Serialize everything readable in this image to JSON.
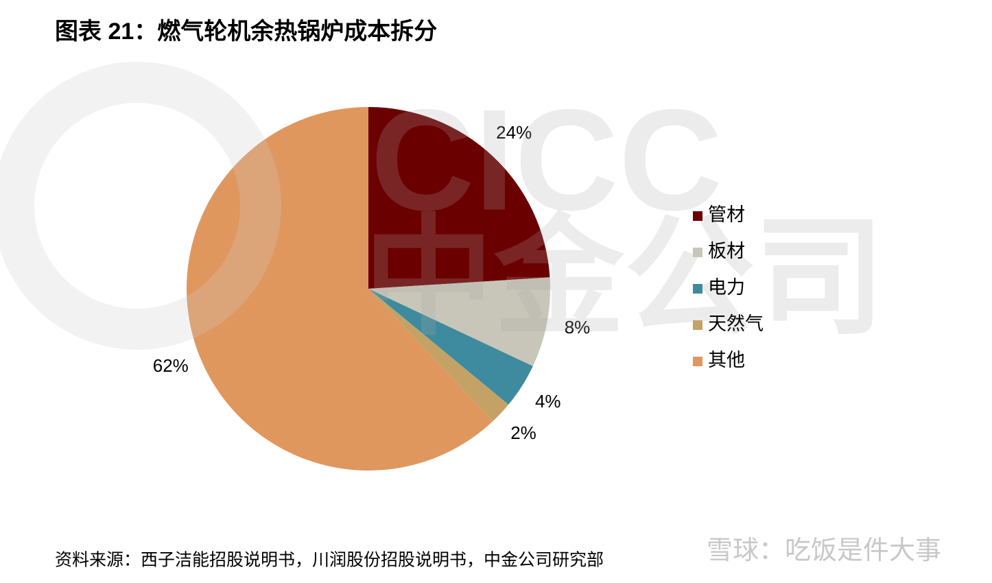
{
  "chart_data": {
    "type": "pie",
    "title": "图表 21：燃气轮机余热锅炉成本拆分",
    "categories": [
      "管材",
      "板材",
      "电力",
      "天然气",
      "其他"
    ],
    "values": [
      24,
      8,
      4,
      2,
      62
    ],
    "value_labels": [
      "24%",
      "8%",
      "4%",
      "2%",
      "62%"
    ],
    "colors": [
      "#6b0000",
      "#c8c6b8",
      "#3e8a9e",
      "#c4a266",
      "#e0975e"
    ],
    "legend": "right",
    "source": "资料来源：西子洁能招股说明书，川润股份招股说明书，中金公司研究部",
    "watermark": [
      "CICC",
      "中金公司"
    ],
    "site_watermark": "雪球：吃饭是件大事"
  }
}
